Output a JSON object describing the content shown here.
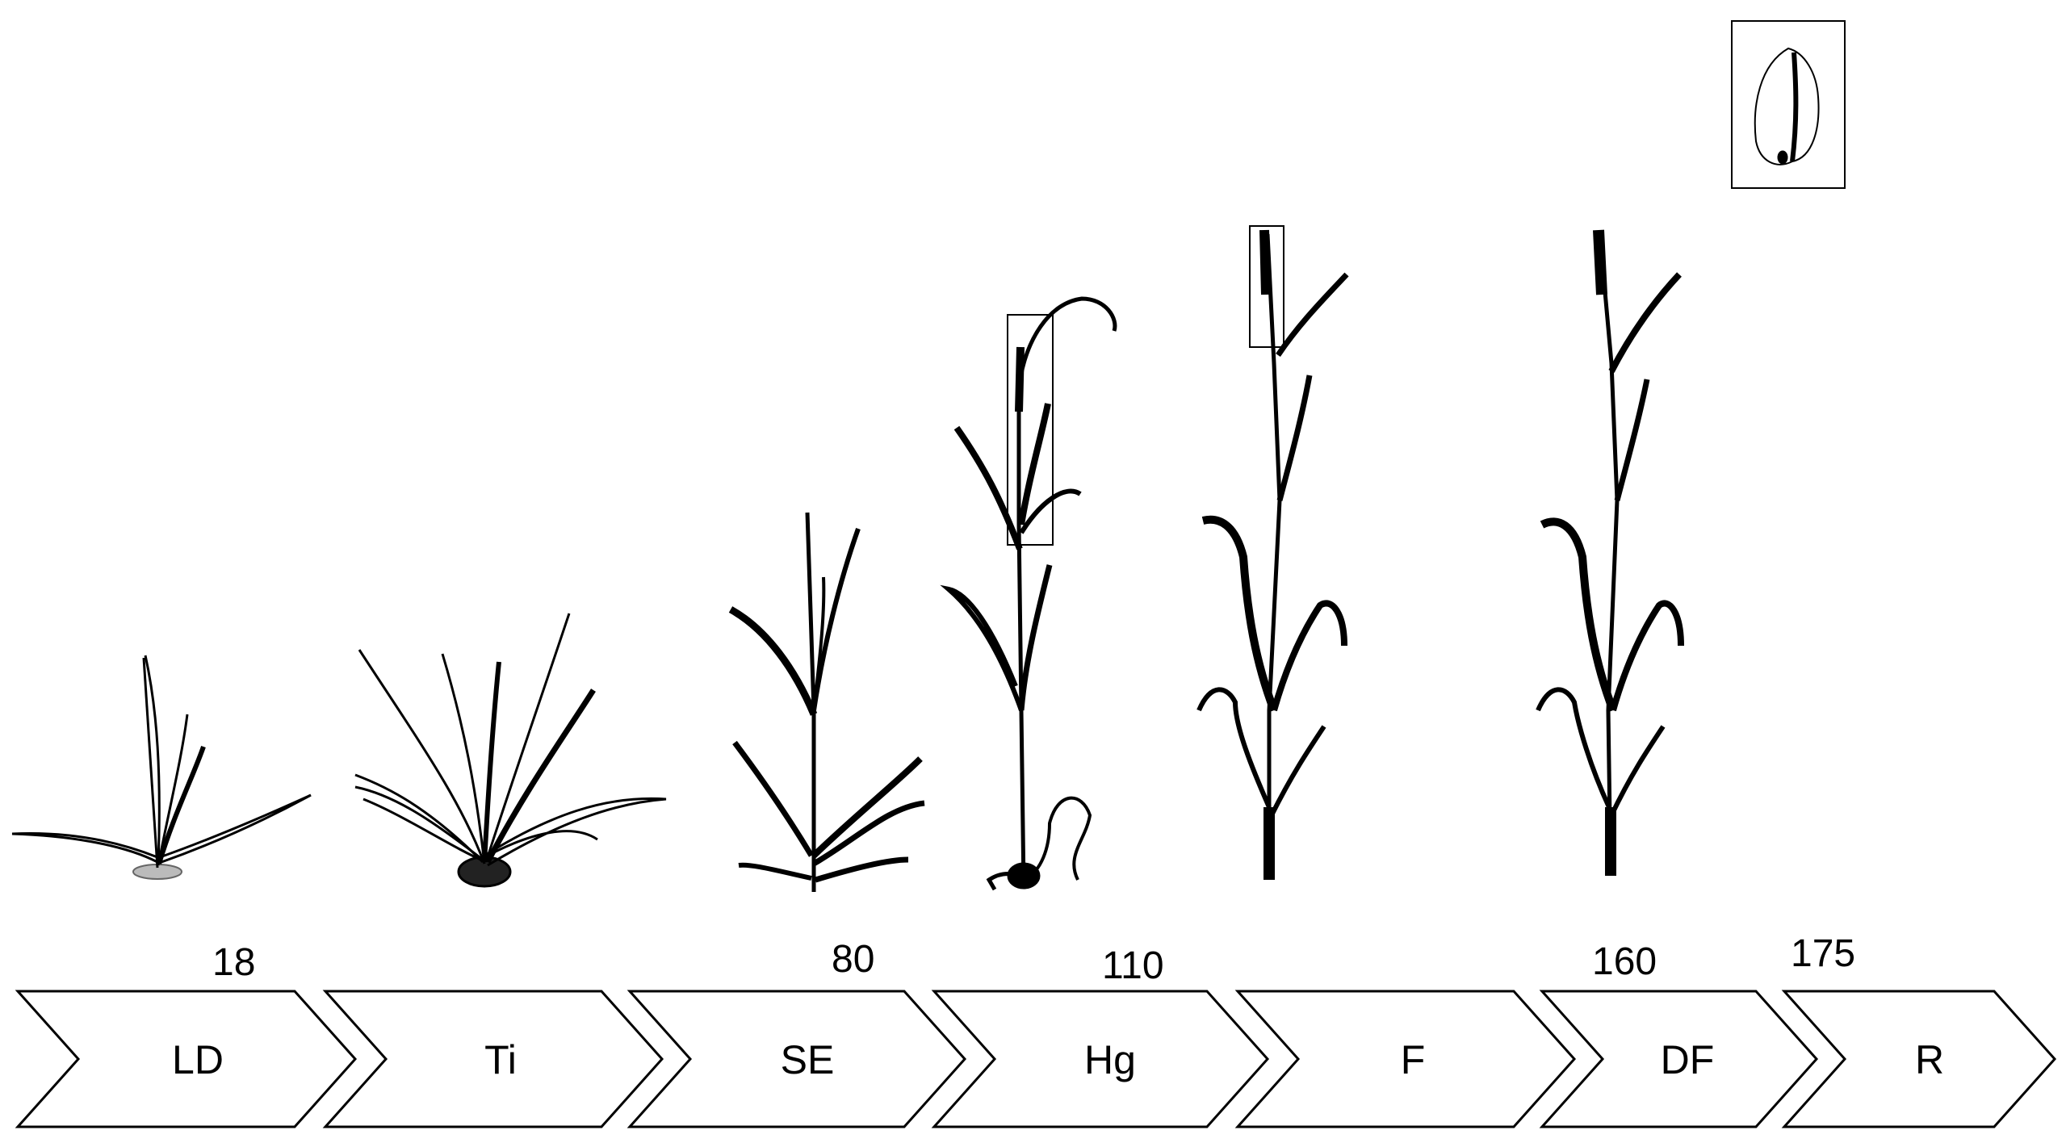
{
  "stages": [
    {
      "label": "LD",
      "plant": "leaf-development-seedling"
    },
    {
      "label": "Ti",
      "plant": "tillering-plant"
    },
    {
      "label": "SE",
      "plant": "stem-elongation-plant"
    },
    {
      "label": "Hg",
      "plant": "heading-plant"
    },
    {
      "label": "F",
      "plant": "flowering-plant"
    },
    {
      "label": "DF",
      "plant": "development-of-fruit-plant"
    },
    {
      "label": "R",
      "plant": "ripening-grain"
    }
  ],
  "day_markers": [
    {
      "label": "18"
    },
    {
      "label": "80"
    },
    {
      "label": "110"
    },
    {
      "label": "160"
    },
    {
      "label": "175"
    }
  ],
  "colors": {
    "line": "#000000",
    "background": "#ffffff"
  }
}
